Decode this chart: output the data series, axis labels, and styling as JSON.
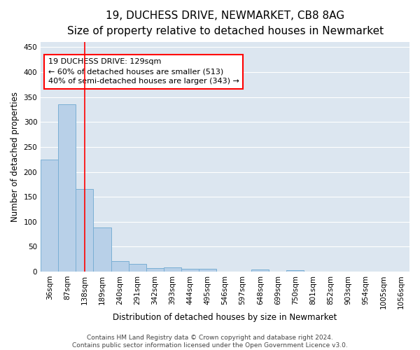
{
  "title": "19, DUCHESS DRIVE, NEWMARKET, CB8 8AG",
  "subtitle": "Size of property relative to detached houses in Newmarket",
  "xlabel": "Distribution of detached houses by size in Newmarket",
  "ylabel": "Number of detached properties",
  "bar_values": [
    225,
    335,
    165,
    88,
    21,
    16,
    7,
    8,
    5,
    5,
    0,
    0,
    4,
    0,
    3,
    0,
    0,
    0,
    0,
    0,
    0
  ],
  "bin_labels": [
    "36sqm",
    "87sqm",
    "138sqm",
    "189sqm",
    "240sqm",
    "291sqm",
    "342sqm",
    "393sqm",
    "444sqm",
    "495sqm",
    "546sqm",
    "597sqm",
    "648sqm",
    "699sqm",
    "750sqm",
    "801sqm",
    "852sqm",
    "903sqm",
    "954sqm",
    "1005sqm",
    "1056sqm"
  ],
  "bar_color": "#b8d0e8",
  "bar_edge_color": "#7aafd4",
  "background_color": "#dce6f0",
  "grid_color": "#ffffff",
  "red_line_x": 2.0,
  "ylim": [
    0,
    460
  ],
  "yticks": [
    0,
    50,
    100,
    150,
    200,
    250,
    300,
    350,
    400,
    450
  ],
  "annotation_title": "19 DUCHESS DRIVE: 129sqm",
  "annotation_line1": "← 60% of detached houses are smaller (513)",
  "annotation_line2": "40% of semi-detached houses are larger (343) →",
  "footer_line1": "Contains HM Land Registry data © Crown copyright and database right 2024.",
  "footer_line2": "Contains public sector information licensed under the Open Government Licence v3.0.",
  "title_fontsize": 11,
  "subtitle_fontsize": 9.5,
  "axis_label_fontsize": 8.5,
  "tick_fontsize": 7.5,
  "annotation_fontsize": 8,
  "footer_fontsize": 6.5
}
